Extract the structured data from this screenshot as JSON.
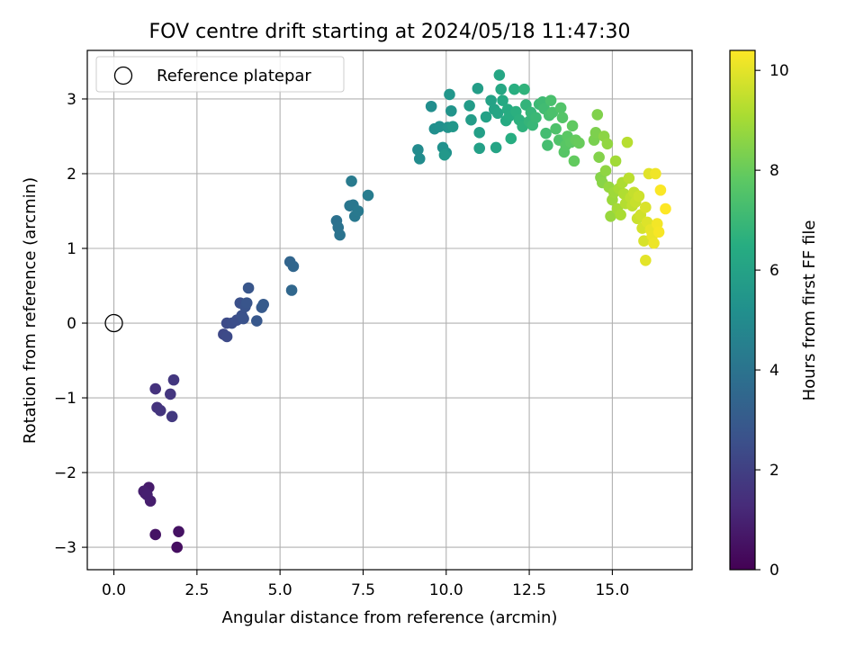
{
  "chart_data": {
    "type": "scatter",
    "title": "FOV centre drift starting at 2024/05/18 11:47:30",
    "xlabel": "Angular distance from reference (arcmin)",
    "ylabel": "Rotation from reference (arcmin)",
    "xlim": [
      -0.8,
      17.4
    ],
    "ylim": [
      -3.3,
      3.65
    ],
    "xticks": [
      0.0,
      2.5,
      5.0,
      7.5,
      10.0,
      12.5,
      15.0
    ],
    "xtick_labels": [
      "0.0",
      "2.5",
      "5.0",
      "7.5",
      "10.0",
      "12.5",
      "15.0"
    ],
    "yticks": [
      -3,
      -2,
      -1,
      0,
      1,
      2,
      3
    ],
    "ytick_labels": [
      "−3",
      "−2",
      "−1",
      "0",
      "1",
      "2",
      "3"
    ],
    "grid": true,
    "legend": {
      "placement": "upper-left",
      "entries": [
        {
          "label": "Reference platepar",
          "marker": "open-circle",
          "color": "#000000"
        }
      ]
    },
    "reference_point": {
      "x": 0.0,
      "y": 0.0
    },
    "colorbar": {
      "label": "Hours from first FF file",
      "colormap": "viridis",
      "range": [
        0,
        10.4
      ],
      "ticks": [
        0,
        2,
        4,
        6,
        8,
        10
      ],
      "tick_labels": [
        "0",
        "2",
        "4",
        "6",
        "8",
        "10"
      ]
    },
    "points": [
      {
        "x": 1.9,
        "y": -3.0,
        "c": 0.4
      },
      {
        "x": 1.95,
        "y": -2.79,
        "c": 0.5
      },
      {
        "x": 1.25,
        "y": -2.83,
        "c": 0.55
      },
      {
        "x": 0.95,
        "y": -2.28,
        "c": 0.75
      },
      {
        "x": 1.05,
        "y": -2.2,
        "c": 0.8
      },
      {
        "x": 1.1,
        "y": -2.38,
        "c": 0.85
      },
      {
        "x": 0.9,
        "y": -2.25,
        "c": 0.9
      },
      {
        "x": 1.0,
        "y": -2.3,
        "c": 0.95
      },
      {
        "x": 1.25,
        "y": -0.88,
        "c": 1.5
      },
      {
        "x": 1.3,
        "y": -1.13,
        "c": 1.55
      },
      {
        "x": 1.4,
        "y": -1.17,
        "c": 1.6
      },
      {
        "x": 1.7,
        "y": -0.95,
        "c": 1.65
      },
      {
        "x": 1.8,
        "y": -0.76,
        "c": 1.7
      },
      {
        "x": 1.75,
        "y": -1.25,
        "c": 1.75
      },
      {
        "x": 3.3,
        "y": -0.15,
        "c": 2.3
      },
      {
        "x": 3.4,
        "y": -0.18,
        "c": 2.35
      },
      {
        "x": 3.4,
        "y": 0.0,
        "c": 2.4
      },
      {
        "x": 3.55,
        "y": 0.0,
        "c": 2.45
      },
      {
        "x": 3.7,
        "y": 0.04,
        "c": 2.5
      },
      {
        "x": 3.8,
        "y": 0.27,
        "c": 2.55
      },
      {
        "x": 3.85,
        "y": 0.1,
        "c": 2.6
      },
      {
        "x": 3.9,
        "y": 0.06,
        "c": 2.65
      },
      {
        "x": 3.95,
        "y": 0.22,
        "c": 2.7
      },
      {
        "x": 4.0,
        "y": 0.27,
        "c": 2.75
      },
      {
        "x": 4.05,
        "y": 0.47,
        "c": 2.8
      },
      {
        "x": 4.3,
        "y": 0.03,
        "c": 2.9
      },
      {
        "x": 4.45,
        "y": 0.21,
        "c": 2.95
      },
      {
        "x": 4.5,
        "y": 0.25,
        "c": 3.0
      },
      {
        "x": 5.3,
        "y": 0.82,
        "c": 3.4
      },
      {
        "x": 5.4,
        "y": 0.76,
        "c": 3.45
      },
      {
        "x": 5.35,
        "y": 0.44,
        "c": 3.5
      },
      {
        "x": 6.7,
        "y": 1.37,
        "c": 3.9
      },
      {
        "x": 6.75,
        "y": 1.28,
        "c": 3.95
      },
      {
        "x": 6.8,
        "y": 1.18,
        "c": 4.0
      },
      {
        "x": 7.1,
        "y": 1.57,
        "c": 4.1
      },
      {
        "x": 7.2,
        "y": 1.58,
        "c": 4.15
      },
      {
        "x": 7.25,
        "y": 1.43,
        "c": 4.2
      },
      {
        "x": 7.35,
        "y": 1.5,
        "c": 4.25
      },
      {
        "x": 7.15,
        "y": 1.9,
        "c": 4.3
      },
      {
        "x": 7.65,
        "y": 1.71,
        "c": 4.35
      },
      {
        "x": 9.15,
        "y": 2.32,
        "c": 5.0
      },
      {
        "x": 9.2,
        "y": 2.2,
        "c": 5.05
      },
      {
        "x": 9.55,
        "y": 2.9,
        "c": 5.1
      },
      {
        "x": 9.65,
        "y": 2.6,
        "c": 5.15
      },
      {
        "x": 9.8,
        "y": 2.63,
        "c": 5.2
      },
      {
        "x": 9.9,
        "y": 2.35,
        "c": 5.25
      },
      {
        "x": 10.0,
        "y": 2.28,
        "c": 5.3
      },
      {
        "x": 10.05,
        "y": 2.62,
        "c": 5.35
      },
      {
        "x": 10.15,
        "y": 2.84,
        "c": 5.4
      },
      {
        "x": 10.1,
        "y": 3.06,
        "c": 5.45
      },
      {
        "x": 10.2,
        "y": 2.63,
        "c": 5.5
      },
      {
        "x": 9.95,
        "y": 2.25,
        "c": 5.55
      },
      {
        "x": 10.7,
        "y": 2.91,
        "c": 5.7
      },
      {
        "x": 10.75,
        "y": 2.72,
        "c": 5.75
      },
      {
        "x": 10.95,
        "y": 3.14,
        "c": 5.8
      },
      {
        "x": 11.0,
        "y": 2.55,
        "c": 5.85
      },
      {
        "x": 11.0,
        "y": 2.34,
        "c": 5.9
      },
      {
        "x": 11.2,
        "y": 2.76,
        "c": 5.95
      },
      {
        "x": 11.35,
        "y": 2.98,
        "c": 6.0
      },
      {
        "x": 11.45,
        "y": 2.86,
        "c": 6.05
      },
      {
        "x": 11.5,
        "y": 2.35,
        "c": 6.1
      },
      {
        "x": 11.55,
        "y": 2.81,
        "c": 6.15
      },
      {
        "x": 11.6,
        "y": 3.32,
        "c": 6.2
      },
      {
        "x": 11.65,
        "y": 3.13,
        "c": 6.25
      },
      {
        "x": 11.7,
        "y": 2.98,
        "c": 6.3
      },
      {
        "x": 11.8,
        "y": 2.71,
        "c": 6.35
      },
      {
        "x": 11.85,
        "y": 2.86,
        "c": 6.4
      },
      {
        "x": 11.9,
        "y": 2.77,
        "c": 6.45
      },
      {
        "x": 11.95,
        "y": 2.47,
        "c": 6.5
      },
      {
        "x": 12.05,
        "y": 3.13,
        "c": 6.55
      },
      {
        "x": 12.1,
        "y": 2.83,
        "c": 6.6
      },
      {
        "x": 12.2,
        "y": 2.72,
        "c": 6.65
      },
      {
        "x": 12.3,
        "y": 2.63,
        "c": 6.7
      },
      {
        "x": 12.35,
        "y": 3.13,
        "c": 6.75
      },
      {
        "x": 12.4,
        "y": 2.92,
        "c": 6.8
      },
      {
        "x": 12.5,
        "y": 2.7,
        "c": 6.85
      },
      {
        "x": 12.55,
        "y": 2.82,
        "c": 6.9
      },
      {
        "x": 12.6,
        "y": 2.65,
        "c": 6.95
      },
      {
        "x": 12.7,
        "y": 2.75,
        "c": 7.0
      },
      {
        "x": 12.8,
        "y": 2.93,
        "c": 7.05
      },
      {
        "x": 12.9,
        "y": 2.96,
        "c": 7.1
      },
      {
        "x": 12.95,
        "y": 2.87,
        "c": 7.15
      },
      {
        "x": 13.0,
        "y": 2.54,
        "c": 7.2
      },
      {
        "x": 13.05,
        "y": 2.38,
        "c": 7.25
      },
      {
        "x": 13.1,
        "y": 2.78,
        "c": 7.3
      },
      {
        "x": 13.15,
        "y": 2.98,
        "c": 7.35
      },
      {
        "x": 13.2,
        "y": 2.82,
        "c": 7.4
      },
      {
        "x": 13.3,
        "y": 2.6,
        "c": 7.45
      },
      {
        "x": 13.4,
        "y": 2.45,
        "c": 7.5
      },
      {
        "x": 13.45,
        "y": 2.88,
        "c": 7.55
      },
      {
        "x": 13.5,
        "y": 2.75,
        "c": 7.6
      },
      {
        "x": 13.55,
        "y": 2.29,
        "c": 7.65
      },
      {
        "x": 13.6,
        "y": 2.38,
        "c": 7.7
      },
      {
        "x": 13.65,
        "y": 2.5,
        "c": 7.75
      },
      {
        "x": 13.75,
        "y": 2.42,
        "c": 7.8
      },
      {
        "x": 13.8,
        "y": 2.64,
        "c": 7.85
      },
      {
        "x": 13.85,
        "y": 2.17,
        "c": 7.9
      },
      {
        "x": 13.9,
        "y": 2.45,
        "c": 7.95
      },
      {
        "x": 14.0,
        "y": 2.41,
        "c": 8.0
      },
      {
        "x": 14.45,
        "y": 2.45,
        "c": 8.3
      },
      {
        "x": 14.5,
        "y": 2.55,
        "c": 8.35
      },
      {
        "x": 14.55,
        "y": 2.79,
        "c": 8.4
      },
      {
        "x": 14.6,
        "y": 2.22,
        "c": 8.45
      },
      {
        "x": 14.65,
        "y": 1.95,
        "c": 8.5
      },
      {
        "x": 14.7,
        "y": 1.88,
        "c": 8.55
      },
      {
        "x": 14.75,
        "y": 2.5,
        "c": 8.6
      },
      {
        "x": 14.8,
        "y": 2.04,
        "c": 8.65
      },
      {
        "x": 14.85,
        "y": 2.4,
        "c": 8.7
      },
      {
        "x": 14.9,
        "y": 1.82,
        "c": 8.75
      },
      {
        "x": 14.95,
        "y": 1.43,
        "c": 8.8
      },
      {
        "x": 15.0,
        "y": 1.65,
        "c": 8.85
      },
      {
        "x": 15.05,
        "y": 1.75,
        "c": 8.9
      },
      {
        "x": 15.1,
        "y": 2.17,
        "c": 8.95
      },
      {
        "x": 15.15,
        "y": 1.53,
        "c": 9.0
      },
      {
        "x": 15.2,
        "y": 1.8,
        "c": 9.05
      },
      {
        "x": 15.25,
        "y": 1.45,
        "c": 9.1
      },
      {
        "x": 15.3,
        "y": 1.88,
        "c": 9.15
      },
      {
        "x": 15.35,
        "y": 1.73,
        "c": 9.2
      },
      {
        "x": 15.4,
        "y": 1.6,
        "c": 9.25
      },
      {
        "x": 15.45,
        "y": 2.42,
        "c": 9.3
      },
      {
        "x": 15.5,
        "y": 1.94,
        "c": 9.35
      },
      {
        "x": 15.55,
        "y": 1.68,
        "c": 9.4
      },
      {
        "x": 15.6,
        "y": 1.57,
        "c": 9.45
      },
      {
        "x": 15.65,
        "y": 1.75,
        "c": 9.5
      },
      {
        "x": 15.7,
        "y": 1.62,
        "c": 9.55
      },
      {
        "x": 15.75,
        "y": 1.4,
        "c": 9.6
      },
      {
        "x": 15.8,
        "y": 1.7,
        "c": 9.65
      },
      {
        "x": 15.85,
        "y": 1.45,
        "c": 9.7
      },
      {
        "x": 15.9,
        "y": 1.27,
        "c": 9.75
      },
      {
        "x": 15.95,
        "y": 1.1,
        "c": 9.8
      },
      {
        "x": 16.0,
        "y": 1.55,
        "c": 9.85
      },
      {
        "x": 16.05,
        "y": 1.35,
        "c": 9.9
      },
      {
        "x": 16.1,
        "y": 2.0,
        "c": 9.95
      },
      {
        "x": 16.0,
        "y": 0.84,
        "c": 10.0
      },
      {
        "x": 16.15,
        "y": 1.25,
        "c": 10.05
      },
      {
        "x": 16.2,
        "y": 1.17,
        "c": 10.1
      },
      {
        "x": 16.25,
        "y": 1.07,
        "c": 10.15
      },
      {
        "x": 16.3,
        "y": 2.0,
        "c": 10.2
      },
      {
        "x": 16.35,
        "y": 1.33,
        "c": 10.25
      },
      {
        "x": 16.4,
        "y": 1.22,
        "c": 10.3
      },
      {
        "x": 16.45,
        "y": 1.78,
        "c": 10.35
      },
      {
        "x": 16.6,
        "y": 1.53,
        "c": 10.4
      }
    ]
  }
}
